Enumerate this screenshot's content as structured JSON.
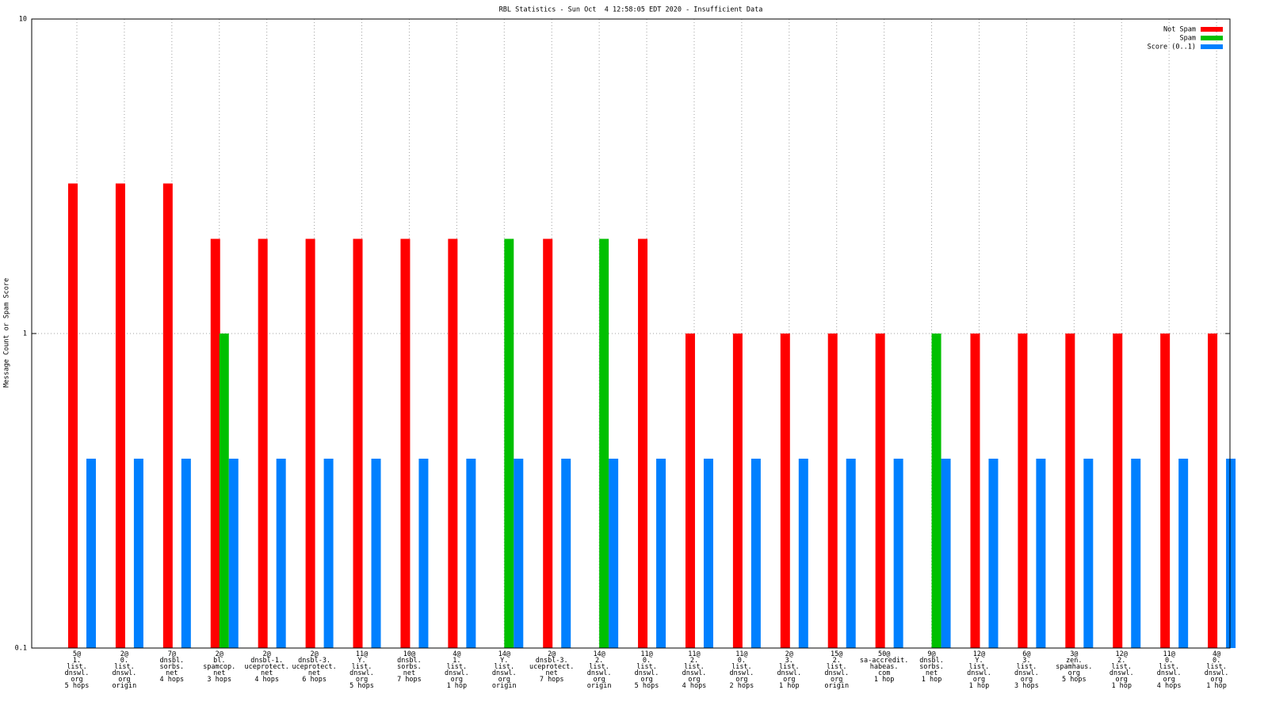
{
  "chart_data": {
    "type": "bar",
    "title": "RBL Statistics - Sun Oct  4 12:58:05 EDT 2020 - Insufficient Data",
    "y_label": "Message Count or Spam Score",
    "categories": [
      [
        "5@",
        "1.",
        "list.",
        "dnswl.",
        "org",
        "5 hops"
      ],
      [
        "2@",
        "0.",
        "list.",
        "dnswl.",
        "org",
        "origin"
      ],
      [
        "7@",
        "dnsbl.",
        "sorbs.",
        "net",
        "4 hops"
      ],
      [
        "2@",
        "bl.",
        "spamcop.",
        "net",
        "3 hops"
      ],
      [
        "2@",
        "dnsbl-1.",
        "uceprotect.",
        "net",
        "4 hops"
      ],
      [
        "2@",
        "dnsbl-3.",
        "uceprotect.",
        "net",
        "6 hops"
      ],
      [
        "11@",
        "Y.",
        "list.",
        "dnswl.",
        "org",
        "5 hops"
      ],
      [
        "10@",
        "dnsbl.",
        "sorbs.",
        "net",
        "7 hops"
      ],
      [
        "4@",
        "1.",
        "list.",
        "dnswl.",
        "org",
        "1 hop"
      ],
      [
        "14@",
        "Y.",
        "list.",
        "dnswl.",
        "org",
        "origin"
      ],
      [
        "2@",
        "dnsbl-3.",
        "uceprotect.",
        "net",
        "7 hops"
      ],
      [
        "14@",
        "2.",
        "list.",
        "dnswl.",
        "org",
        "origin"
      ],
      [
        "11@",
        "0.",
        "list.",
        "dnswl.",
        "org",
        "5 hops"
      ],
      [
        "11@",
        "2.",
        "list.",
        "dnswl.",
        "org",
        "4 hops"
      ],
      [
        "11@",
        "0.",
        "list.",
        "dnswl.",
        "org",
        "2 hops"
      ],
      [
        "2@",
        "3.",
        "list.",
        "dnswl.",
        "org",
        "1 hop"
      ],
      [
        "15@",
        "2.",
        "list.",
        "dnswl.",
        "org",
        "origin"
      ],
      [
        "50@",
        "sa-accredit.",
        "habeas.",
        "com",
        "1 hop"
      ],
      [
        "9@",
        "dnsbl.",
        "sorbs.",
        "net",
        "1 hop"
      ],
      [
        "12@",
        "Y.",
        "list.",
        "dnswl.",
        "org",
        "1 hop"
      ],
      [
        "6@",
        "3.",
        "list.",
        "dnswl.",
        "org",
        "3 hops"
      ],
      [
        "3@",
        "zen.",
        "spamhaus.",
        "org",
        "5 hops"
      ],
      [
        "12@",
        "2.",
        "list.",
        "dnswl.",
        "org",
        "1 hop"
      ],
      [
        "11@",
        "0.",
        "list.",
        "dnswl.",
        "org",
        "4 hops"
      ],
      [
        "4@",
        "0.",
        "list.",
        "dnswl.",
        "org",
        "1 hop"
      ]
    ],
    "series": [
      {
        "name": "Not Spam",
        "color": "#ff0000",
        "values": [
          3,
          3,
          3,
          2,
          2,
          2,
          2,
          2,
          2,
          null,
          2,
          null,
          2,
          1,
          1,
          1,
          1,
          1,
          null,
          1,
          1,
          1,
          1,
          1,
          1
        ]
      },
      {
        "name": "Spam",
        "color": "#00c000",
        "values": [
          null,
          null,
          null,
          1,
          null,
          null,
          null,
          null,
          null,
          2,
          null,
          2,
          null,
          null,
          null,
          null,
          null,
          null,
          1,
          null,
          null,
          null,
          null,
          null,
          null
        ]
      },
      {
        "name": "Score (0..1)",
        "color": "#0080ff",
        "values": [
          0.4,
          0.4,
          0.4,
          0.4,
          0.4,
          0.4,
          0.4,
          0.4,
          0.4,
          0.4,
          0.4,
          0.4,
          0.4,
          0.4,
          0.4,
          0.4,
          0.4,
          0.4,
          0.4,
          0.4,
          0.4,
          0.4,
          0.4,
          0.4,
          0.4
        ]
      }
    ],
    "ylim": [
      0.1,
      10
    ],
    "yticks": [
      0.1,
      1,
      10
    ],
    "log_y": true,
    "grid": true,
    "legend": "top-right"
  }
}
